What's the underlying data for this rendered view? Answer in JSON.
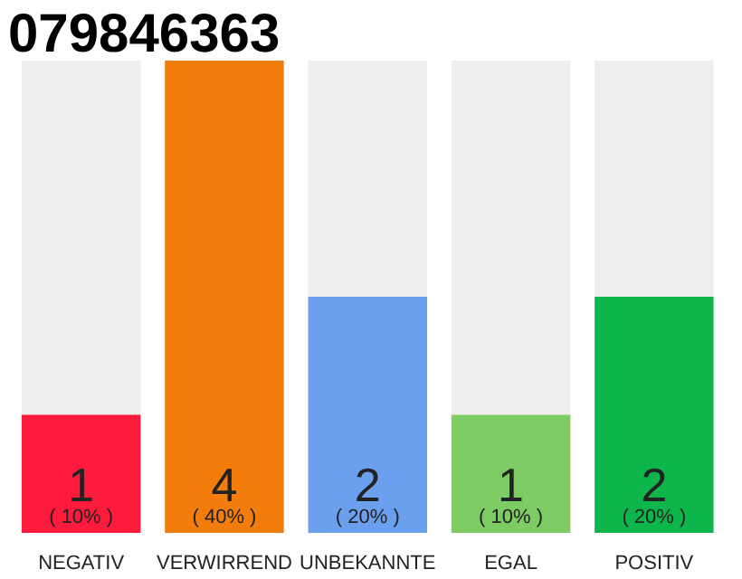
{
  "chart_data": {
    "type": "bar",
    "title": "079846363",
    "categories": [
      "NEGATIV",
      "VERWIRREND",
      "UNBEKANNTE",
      "EGAL",
      "POSITIV"
    ],
    "values": [
      1,
      4,
      2,
      1,
      2
    ],
    "colors": [
      "#fe1a3c",
      "#f27c0c",
      "#6aa0ee",
      "#7dcb63",
      "#0db54a"
    ],
    "value_labels": [
      "1\n( 10% )",
      "4\n( 40% )",
      "2\n( 20% )",
      "1\n( 10% )",
      "2\n( 20% )"
    ],
    "ylim": [
      0,
      4
    ],
    "tick_labels": "x",
    "grid": false
  }
}
